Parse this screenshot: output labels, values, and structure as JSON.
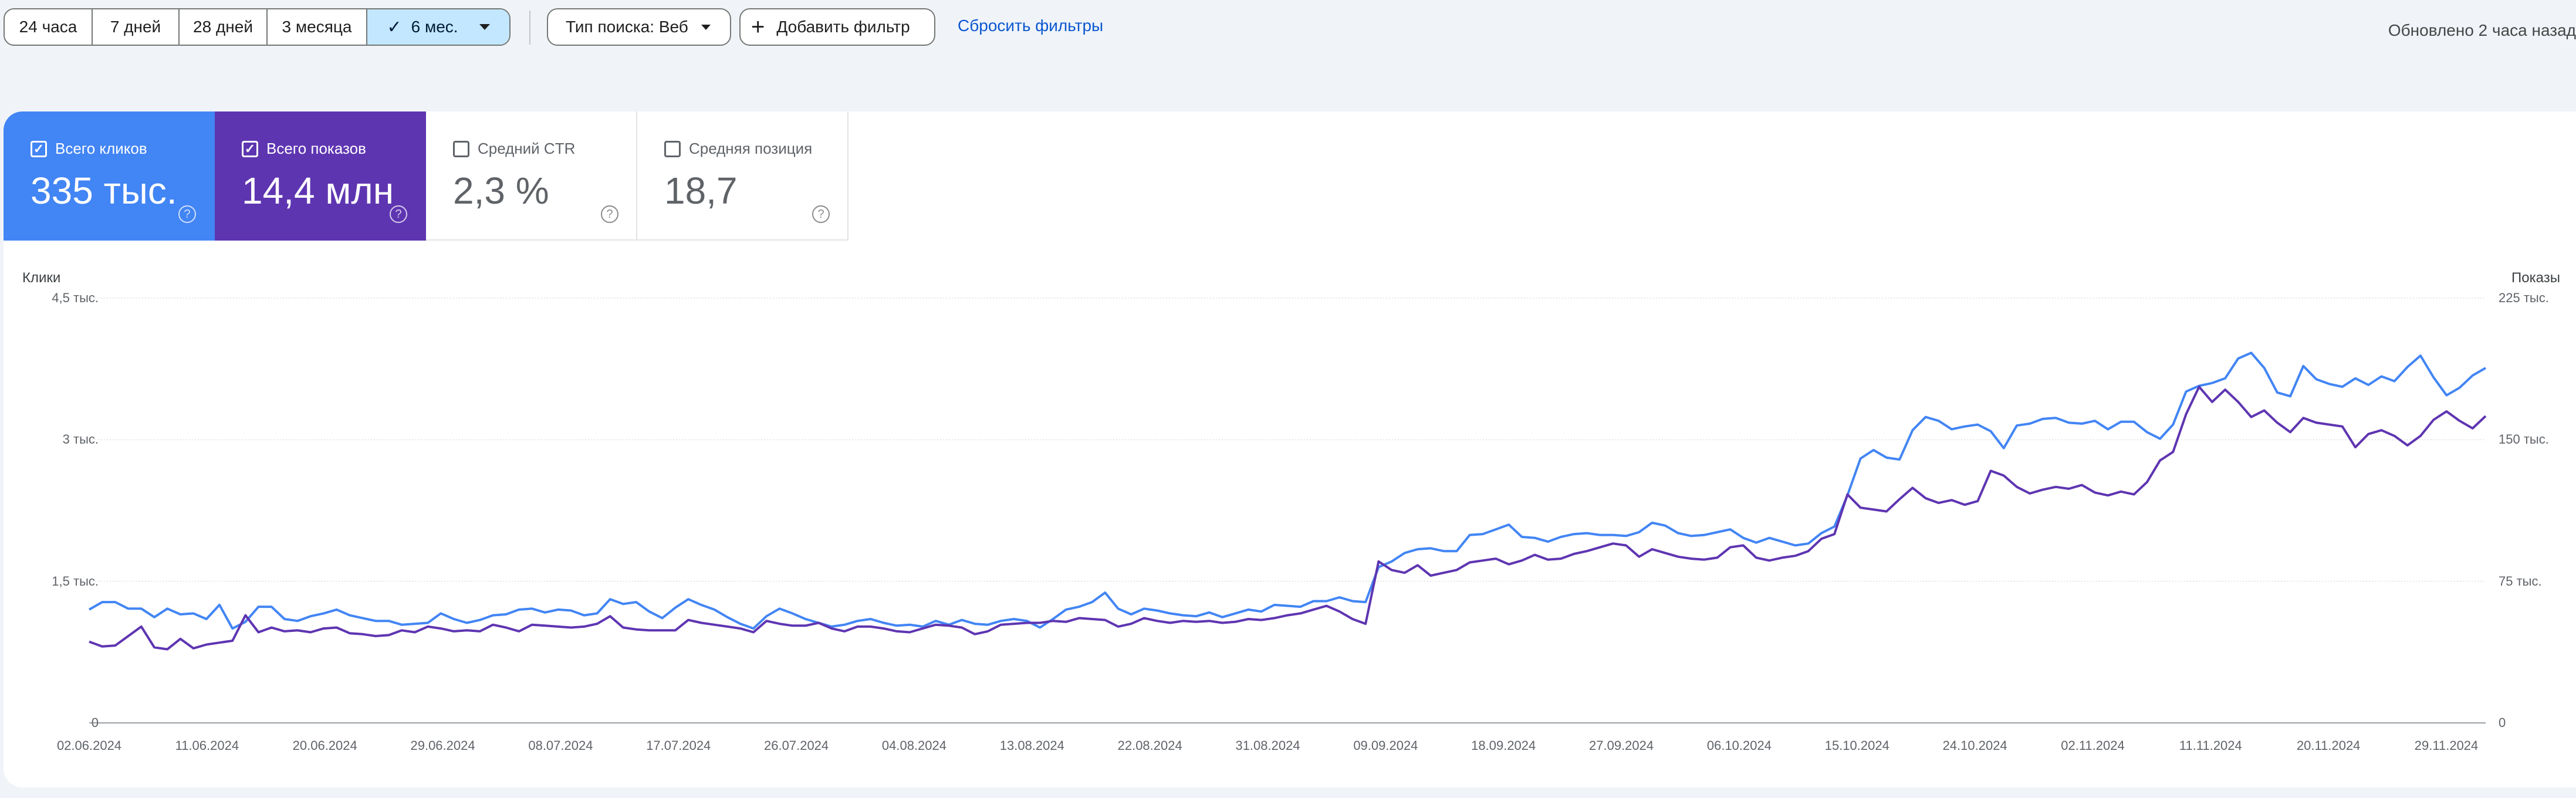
{
  "toolbar": {
    "date_ranges": [
      "24 часа",
      "7 дней",
      "28 дней",
      "3 месяца",
      "6 мес."
    ],
    "selected_range": "6 мес.",
    "search_type": "Тип поиска: Веб",
    "add_filter": "Добавить фильтр",
    "reset_filters": "Сбросить фильтры",
    "updated": "Обновлено 2 часа назад"
  },
  "metrics": [
    {
      "label": "Всего кликов",
      "value": "335 тыс.",
      "checked": true,
      "color": "#4285f4"
    },
    {
      "label": "Всего показов",
      "value": "14,4 млн",
      "checked": true,
      "color": "#5e35b1"
    },
    {
      "label": "Средний CTR",
      "value": "2,3 %",
      "checked": false,
      "color": "#ffffff"
    },
    {
      "label": "Средняя позиция",
      "value": "18,7",
      "checked": false,
      "color": "#ffffff"
    }
  ],
  "chart_data": {
    "type": "line",
    "y_left_title": "Клики",
    "y_right_title": "Показы",
    "y_left_ticks": [
      "0",
      "1,5 тыс.",
      "3 тыс.",
      "4,5 тыс."
    ],
    "y_right_ticks": [
      "0",
      "75 тыс.",
      "150 тыс.",
      "225 тыс."
    ],
    "y_left_range": [
      0,
      4500
    ],
    "y_right_range": [
      0,
      225000
    ],
    "x_tick_labels": [
      "02.06.2024",
      "11.06.2024",
      "20.06.2024",
      "29.06.2024",
      "08.07.2024",
      "17.07.2024",
      "26.07.2024",
      "04.08.2024",
      "13.08.2024",
      "22.08.2024",
      "31.08.2024",
      "09.09.2024",
      "18.09.2024",
      "27.09.2024",
      "06.10.2024",
      "15.10.2024",
      "24.10.2024",
      "02.11.2024",
      "11.11.2024",
      "20.11.2024",
      "29.11.2024"
    ],
    "x_start": "02.06.2024",
    "x_end": "02.12.2024",
    "grid": true,
    "series": [
      {
        "name": "Всего кликов",
        "axis": "left",
        "color": "#4285f4",
        "values": [
          1200,
          1280,
          1280,
          1210,
          1210,
          1120,
          1210,
          1150,
          1160,
          1100,
          1250,
          1000,
          1070,
          1230,
          1230,
          1100,
          1080,
          1130,
          1160,
          1200,
          1140,
          1110,
          1080,
          1080,
          1040,
          1050,
          1060,
          1160,
          1100,
          1060,
          1090,
          1140,
          1150,
          1200,
          1210,
          1170,
          1200,
          1190,
          1140,
          1160,
          1310,
          1260,
          1280,
          1180,
          1110,
          1220,
          1310,
          1250,
          1200,
          1120,
          1050,
          1000,
          1130,
          1210,
          1160,
          1100,
          1060,
          1020,
          1040,
          1080,
          1100,
          1060,
          1030,
          1040,
          1020,
          1080,
          1040,
          1090,
          1050,
          1040,
          1080,
          1100,
          1080,
          1010,
          1100,
          1200,
          1230,
          1280,
          1380,
          1210,
          1150,
          1210,
          1190,
          1160,
          1140,
          1130,
          1170,
          1120,
          1160,
          1200,
          1180,
          1250,
          1240,
          1230,
          1290,
          1290,
          1330,
          1290,
          1280,
          1650,
          1710,
          1800,
          1840,
          1850,
          1820,
          1820,
          1990,
          2000,
          2050,
          2100,
          1970,
          1960,
          1920,
          1970,
          2000,
          2010,
          1990,
          1990,
          1980,
          2020,
          2120,
          2090,
          2010,
          1980,
          1990,
          2020,
          2050,
          1960,
          1910,
          1960,
          1920,
          1880,
          1900,
          2010,
          2080,
          2410,
          2800,
          2890,
          2810,
          2790,
          3100,
          3240,
          3200,
          3110,
          3140,
          3160,
          3090,
          2910,
          3150,
          3170,
          3220,
          3230,
          3180,
          3170,
          3200,
          3110,
          3190,
          3190,
          3080,
          3010,
          3160,
          3510,
          3570,
          3600,
          3650,
          3860,
          3920,
          3760,
          3500,
          3460,
          3780,
          3640,
          3590,
          3560,
          3650,
          3580,
          3670,
          3620,
          3770,
          3890,
          3660,
          3470,
          3550,
          3680,
          3760
        ]
      },
      {
        "name": "Всего показов",
        "axis": "right",
        "color": "#5e35b1",
        "values": [
          43000,
          40500,
          41000,
          46000,
          51000,
          40000,
          39000,
          44500,
          39500,
          41500,
          42500,
          43500,
          57000,
          48000,
          50500,
          48500,
          49000,
          48000,
          50000,
          50500,
          47500,
          47000,
          46000,
          46500,
          49000,
          48000,
          51000,
          50000,
          48500,
          49000,
          48500,
          52000,
          50500,
          48500,
          52000,
          51500,
          51000,
          50500,
          51000,
          52500,
          56500,
          50500,
          49500,
          49000,
          49000,
          49000,
          54500,
          53000,
          52000,
          51000,
          50000,
          48000,
          54000,
          52500,
          51500,
          51500,
          53000,
          50000,
          48500,
          51000,
          51000,
          50000,
          48500,
          48000,
          50000,
          52000,
          51500,
          50500,
          47000,
          48500,
          52000,
          52500,
          53000,
          53000,
          54000,
          53500,
          55500,
          55000,
          54500,
          51000,
          52500,
          55500,
          54000,
          53000,
          54000,
          53500,
          54000,
          53000,
          53500,
          55000,
          54500,
          55500,
          57000,
          58000,
          60000,
          62000,
          59000,
          55000,
          52500,
          85500,
          81000,
          79500,
          83500,
          78000,
          79500,
          81000,
          85000,
          86000,
          87000,
          84000,
          86000,
          89000,
          86500,
          87000,
          89500,
          91000,
          93000,
          95000,
          94000,
          88000,
          92000,
          90000,
          88000,
          87000,
          86500,
          87500,
          93000,
          94000,
          87500,
          86000,
          87500,
          88500,
          91000,
          97500,
          100000,
          121000,
          114000,
          113000,
          112000,
          118500,
          124500,
          119000,
          116500,
          118000,
          115500,
          117500,
          133500,
          131000,
          125000,
          121500,
          123500,
          125000,
          124000,
          126000,
          122000,
          120500,
          122500,
          121000,
          127500,
          139000,
          143500,
          163500,
          178000,
          170000,
          176500,
          170000,
          162000,
          165500,
          159000,
          154000,
          161500,
          159000,
          158000,
          157000,
          146000,
          153000,
          155000,
          152000,
          147000,
          152000,
          160500,
          165000,
          160000,
          156000,
          162500
        ]
      }
    ]
  }
}
